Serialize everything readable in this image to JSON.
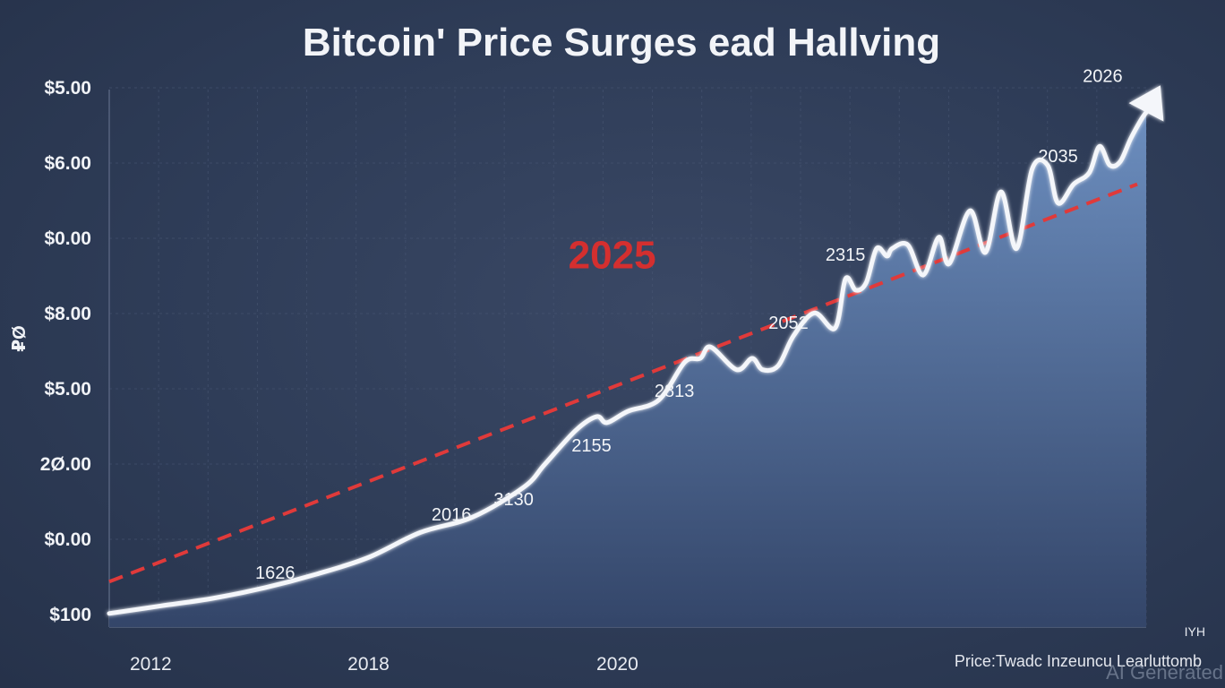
{
  "chart_data": {
    "type": "area",
    "title": "Bitcoin' Price Surges ead Hallving",
    "ylabel": "₽Ø",
    "y_tick_labels": [
      "$100",
      "$0.00",
      "2Ø.00",
      "$5.00",
      "$8.00",
      "$0.00",
      "$6.00",
      "$5.00"
    ],
    "x_tick_labels": [
      "2012",
      "2018",
      "2020"
    ],
    "x_tick_values": [
      0.04,
      0.25,
      0.49
    ],
    "xlim": [
      0,
      1
    ],
    "ylim": [
      0,
      7.1
    ],
    "series": [
      {
        "name": "Price",
        "x": [
          0.0,
          0.05,
          0.1,
          0.15,
          0.2,
          0.25,
          0.3,
          0.35,
          0.4,
          0.42,
          0.45,
          0.47,
          0.48,
          0.5,
          0.53,
          0.555,
          0.57,
          0.58,
          0.605,
          0.62,
          0.63,
          0.645,
          0.66,
          0.68,
          0.7,
          0.71,
          0.72,
          0.73,
          0.74,
          0.75,
          0.755,
          0.77,
          0.785,
          0.8,
          0.81,
          0.83,
          0.845,
          0.86,
          0.875,
          0.89,
          0.905,
          0.915,
          0.93,
          0.945,
          0.955,
          0.965,
          0.975,
          0.985,
          0.995,
          1.0
        ],
        "values": [
          0.18,
          0.28,
          0.38,
          0.52,
          0.7,
          0.92,
          1.25,
          1.45,
          1.85,
          2.15,
          2.6,
          2.78,
          2.7,
          2.85,
          3.0,
          3.5,
          3.55,
          3.7,
          3.4,
          3.55,
          3.4,
          3.45,
          3.85,
          4.15,
          3.95,
          4.6,
          4.45,
          4.55,
          5.0,
          4.9,
          5.0,
          5.05,
          4.65,
          5.15,
          4.8,
          5.5,
          4.95,
          5.75,
          5.0,
          6.05,
          6.1,
          5.6,
          5.85,
          6.0,
          6.35,
          6.1,
          6.15,
          6.45,
          6.7,
          6.8
        ]
      },
      {
        "name": "Trend",
        "style": "dashed",
        "color": "#e03a3a",
        "x": [
          0.0,
          1.0
        ],
        "values": [
          0.6,
          5.85
        ]
      }
    ],
    "annotations": [
      {
        "text": "1626",
        "x": 0.16,
        "y": 0.64
      },
      {
        "text": "2016",
        "x": 0.33,
        "y": 1.41
      },
      {
        "text": "3130",
        "x": 0.39,
        "y": 1.61
      },
      {
        "text": "2155",
        "x": 0.465,
        "y": 2.32
      },
      {
        "text": "2813",
        "x": 0.545,
        "y": 3.04
      },
      {
        "text": "2052",
        "x": 0.655,
        "y": 3.94
      },
      {
        "text": "2315",
        "x": 0.71,
        "y": 4.84
      },
      {
        "text": "2035",
        "x": 0.915,
        "y": 6.14
      },
      {
        "text": "2026",
        "x": 0.958,
        "y": 7.2
      }
    ],
    "highlight_label": {
      "text": "2025",
      "x": 0.485,
      "y": 4.74,
      "color": "#d42f2f"
    },
    "footer": "Price:Twadc Inzeuncu Learluttomb",
    "corner_label": "IYH",
    "watermark": "AI Generated",
    "colors": {
      "background": "#2e3c57",
      "grid": "#4a5875",
      "line": "#f4f6fa",
      "area_top": "#6f92c4",
      "area_bottom": "#34466a",
      "trend": "#e03a3a"
    }
  }
}
